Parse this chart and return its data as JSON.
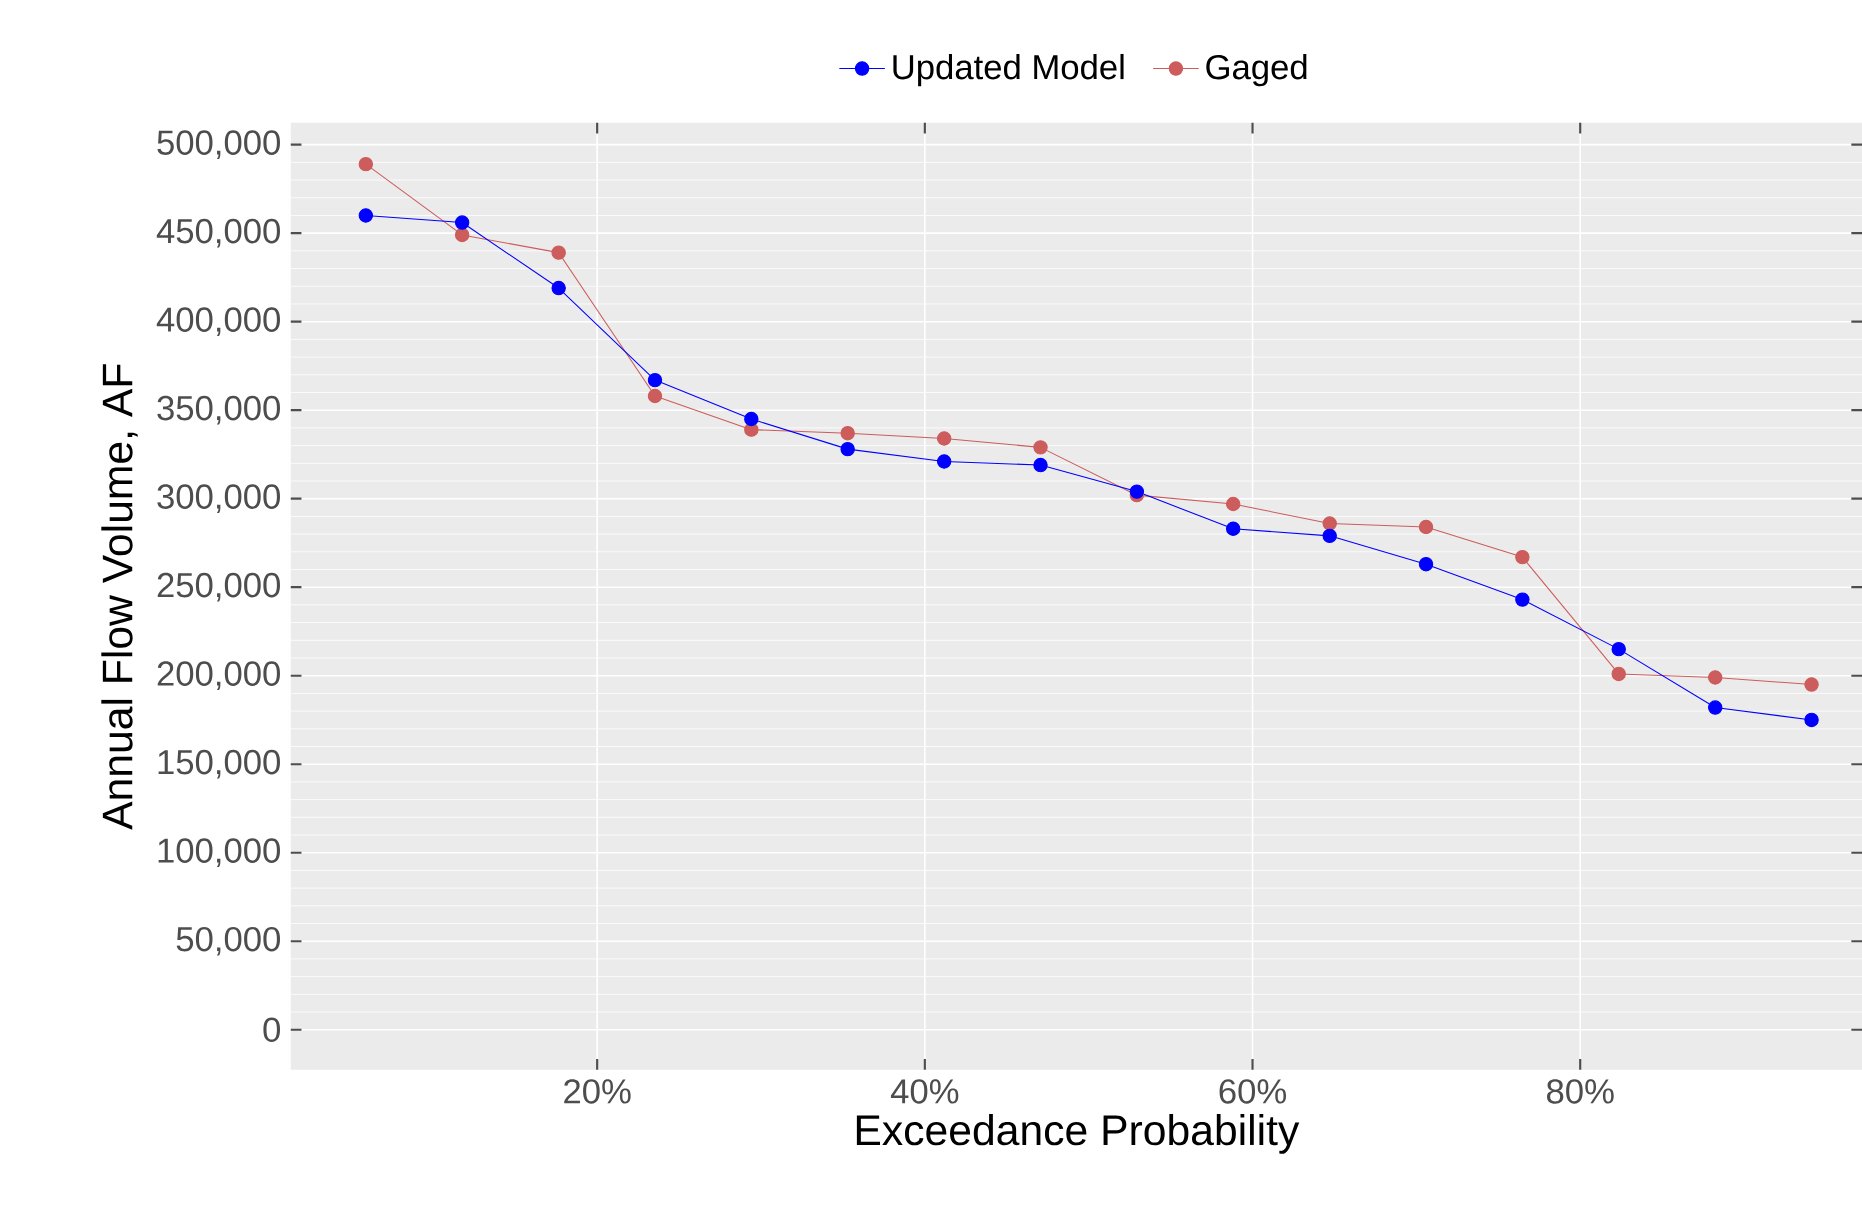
{
  "chart_data": {
    "type": "line",
    "xlabel": "Exceedance Probability",
    "ylabel": "Annual Flow Volume, AF",
    "x": [
      5.88,
      11.76,
      17.65,
      23.53,
      29.41,
      35.29,
      41.18,
      47.06,
      52.94,
      58.82,
      64.71,
      70.59,
      76.47,
      82.35,
      88.24,
      94.12
    ],
    "series": [
      {
        "name": "Updated Model",
        "color": "#0000ff",
        "values": [
          460000,
          456000,
          419000,
          367000,
          345000,
          328000,
          321000,
          319000,
          304000,
          283000,
          279000,
          263000,
          243000,
          215000,
          182000,
          175000
        ]
      },
      {
        "name": "Gaged",
        "color": "#cd5c5c",
        "values": [
          489000,
          449000,
          439000,
          358000,
          339000,
          337000,
          334000,
          329000,
          302000,
          297000,
          286000,
          284000,
          267000,
          201000,
          199000,
          195000
        ]
      }
    ],
    "xlim": [
      1.3,
      97.2
    ],
    "ylim": [
      -22600,
      512400
    ],
    "xticks": [
      {
        "value": 20,
        "label": "20%"
      },
      {
        "value": 40,
        "label": "40%"
      },
      {
        "value": 60,
        "label": "60%"
      },
      {
        "value": 80,
        "label": "80%"
      }
    ],
    "yticks": [
      {
        "value": 0,
        "label": "0"
      },
      {
        "value": 50000,
        "label": "50,000"
      },
      {
        "value": 100000,
        "label": "100,000"
      },
      {
        "value": 150000,
        "label": "150,000"
      },
      {
        "value": 200000,
        "label": "200,000"
      },
      {
        "value": 250000,
        "label": "250,000"
      },
      {
        "value": 300000,
        "label": "300,000"
      },
      {
        "value": 350000,
        "label": "350,000"
      },
      {
        "value": 400000,
        "label": "400,000"
      },
      {
        "value": 450000,
        "label": "450,000"
      },
      {
        "value": 500000,
        "label": "500,000"
      }
    ],
    "grid": true,
    "legend": "top",
    "marker": "circle",
    "line_style": "solid"
  }
}
